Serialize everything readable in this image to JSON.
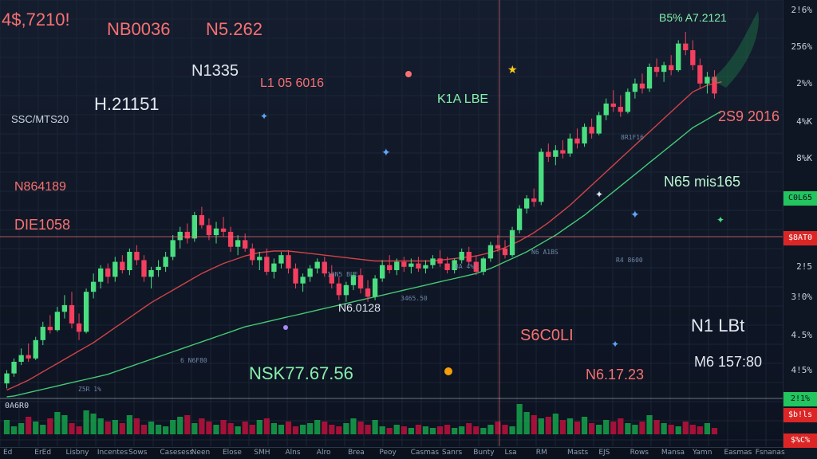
{
  "chart_data": {
    "type": "candlestick",
    "candles": [
      {
        "o": 18,
        "h": 34,
        "l": 12,
        "c": 30
      },
      {
        "o": 30,
        "h": 48,
        "l": 26,
        "c": 44
      },
      {
        "o": 44,
        "h": 60,
        "l": 40,
        "c": 52
      },
      {
        "o": 52,
        "h": 66,
        "l": 44,
        "c": 48
      },
      {
        "o": 48,
        "h": 74,
        "l": 46,
        "c": 70
      },
      {
        "o": 70,
        "h": 92,
        "l": 64,
        "c": 86
      },
      {
        "o": 86,
        "h": 100,
        "l": 78,
        "c": 82
      },
      {
        "o": 82,
        "h": 110,
        "l": 80,
        "c": 104
      },
      {
        "o": 104,
        "h": 124,
        "l": 96,
        "c": 112
      },
      {
        "o": 112,
        "h": 128,
        "l": 84,
        "c": 90
      },
      {
        "o": 90,
        "h": 102,
        "l": 70,
        "c": 80
      },
      {
        "o": 80,
        "h": 132,
        "l": 78,
        "c": 128
      },
      {
        "o": 128,
        "h": 150,
        "l": 120,
        "c": 140
      },
      {
        "o": 140,
        "h": 160,
        "l": 132,
        "c": 156
      },
      {
        "o": 156,
        "h": 162,
        "l": 138,
        "c": 146
      },
      {
        "o": 146,
        "h": 170,
        "l": 140,
        "c": 164
      },
      {
        "o": 164,
        "h": 172,
        "l": 150,
        "c": 154
      },
      {
        "o": 154,
        "h": 180,
        "l": 148,
        "c": 176
      },
      {
        "o": 176,
        "h": 184,
        "l": 160,
        "c": 166
      },
      {
        "o": 166,
        "h": 172,
        "l": 140,
        "c": 146
      },
      {
        "o": 146,
        "h": 158,
        "l": 132,
        "c": 154
      },
      {
        "o": 154,
        "h": 166,
        "l": 146,
        "c": 158
      },
      {
        "o": 158,
        "h": 176,
        "l": 152,
        "c": 170
      },
      {
        "o": 170,
        "h": 196,
        "l": 166,
        "c": 190
      },
      {
        "o": 190,
        "h": 206,
        "l": 180,
        "c": 200
      },
      {
        "o": 200,
        "h": 210,
        "l": 186,
        "c": 192
      },
      {
        "o": 192,
        "h": 224,
        "l": 188,
        "c": 220
      },
      {
        "o": 220,
        "h": 230,
        "l": 204,
        "c": 208
      },
      {
        "o": 208,
        "h": 216,
        "l": 190,
        "c": 196
      },
      {
        "o": 196,
        "h": 212,
        "l": 186,
        "c": 204
      },
      {
        "o": 204,
        "h": 218,
        "l": 194,
        "c": 200
      },
      {
        "o": 200,
        "h": 206,
        "l": 176,
        "c": 182
      },
      {
        "o": 182,
        "h": 196,
        "l": 172,
        "c": 190
      },
      {
        "o": 190,
        "h": 198,
        "l": 176,
        "c": 180
      },
      {
        "o": 180,
        "h": 186,
        "l": 160,
        "c": 166
      },
      {
        "o": 166,
        "h": 176,
        "l": 154,
        "c": 170
      },
      {
        "o": 170,
        "h": 180,
        "l": 148,
        "c": 152
      },
      {
        "o": 152,
        "h": 168,
        "l": 144,
        "c": 162
      },
      {
        "o": 162,
        "h": 176,
        "l": 156,
        "c": 172
      },
      {
        "o": 172,
        "h": 178,
        "l": 150,
        "c": 156
      },
      {
        "o": 156,
        "h": 162,
        "l": 132,
        "c": 138
      },
      {
        "o": 138,
        "h": 150,
        "l": 128,
        "c": 146
      },
      {
        "o": 146,
        "h": 160,
        "l": 140,
        "c": 156
      },
      {
        "o": 156,
        "h": 168,
        "l": 150,
        "c": 164
      },
      {
        "o": 164,
        "h": 170,
        "l": 146,
        "c": 150
      },
      {
        "o": 150,
        "h": 160,
        "l": 132,
        "c": 138
      },
      {
        "o": 138,
        "h": 146,
        "l": 118,
        "c": 124
      },
      {
        "o": 124,
        "h": 140,
        "l": 116,
        "c": 136
      },
      {
        "o": 136,
        "h": 152,
        "l": 130,
        "c": 148
      },
      {
        "o": 148,
        "h": 156,
        "l": 126,
        "c": 132
      },
      {
        "o": 132,
        "h": 142,
        "l": 116,
        "c": 122
      },
      {
        "o": 122,
        "h": 148,
        "l": 118,
        "c": 144
      },
      {
        "o": 144,
        "h": 166,
        "l": 140,
        "c": 160
      },
      {
        "o": 160,
        "h": 172,
        "l": 150,
        "c": 154
      },
      {
        "o": 154,
        "h": 168,
        "l": 148,
        "c": 164
      },
      {
        "o": 164,
        "h": 170,
        "l": 152,
        "c": 158
      },
      {
        "o": 158,
        "h": 168,
        "l": 150,
        "c": 162
      },
      {
        "o": 162,
        "h": 170,
        "l": 152,
        "c": 156
      },
      {
        "o": 156,
        "h": 166,
        "l": 150,
        "c": 160
      },
      {
        "o": 160,
        "h": 172,
        "l": 156,
        "c": 168
      },
      {
        "o": 168,
        "h": 178,
        "l": 158,
        "c": 162
      },
      {
        "o": 162,
        "h": 170,
        "l": 150,
        "c": 154
      },
      {
        "o": 154,
        "h": 168,
        "l": 150,
        "c": 166
      },
      {
        "o": 166,
        "h": 180,
        "l": 162,
        "c": 176
      },
      {
        "o": 176,
        "h": 182,
        "l": 160,
        "c": 164
      },
      {
        "o": 164,
        "h": 172,
        "l": 148,
        "c": 152
      },
      {
        "o": 152,
        "h": 170,
        "l": 148,
        "c": 168
      },
      {
        "o": 168,
        "h": 188,
        "l": 164,
        "c": 184
      },
      {
        "o": 184,
        "h": 196,
        "l": 176,
        "c": 180
      },
      {
        "o": 180,
        "h": 190,
        "l": 168,
        "c": 172
      },
      {
        "o": 172,
        "h": 206,
        "l": 170,
        "c": 202
      },
      {
        "o": 202,
        "h": 232,
        "l": 198,
        "c": 228
      },
      {
        "o": 228,
        "h": 244,
        "l": 222,
        "c": 240
      },
      {
        "o": 240,
        "h": 252,
        "l": 230,
        "c": 236
      },
      {
        "o": 236,
        "h": 300,
        "l": 232,
        "c": 296
      },
      {
        "o": 296,
        "h": 306,
        "l": 284,
        "c": 290
      },
      {
        "o": 290,
        "h": 304,
        "l": 280,
        "c": 298
      },
      {
        "o": 298,
        "h": 310,
        "l": 288,
        "c": 294
      },
      {
        "o": 294,
        "h": 318,
        "l": 290,
        "c": 312
      },
      {
        "o": 312,
        "h": 324,
        "l": 300,
        "c": 306
      },
      {
        "o": 306,
        "h": 330,
        "l": 302,
        "c": 326
      },
      {
        "o": 326,
        "h": 336,
        "l": 312,
        "c": 318
      },
      {
        "o": 318,
        "h": 344,
        "l": 316,
        "c": 340
      },
      {
        "o": 340,
        "h": 360,
        "l": 334,
        "c": 354
      },
      {
        "o": 354,
        "h": 370,
        "l": 344,
        "c": 350
      },
      {
        "o": 350,
        "h": 364,
        "l": 338,
        "c": 344
      },
      {
        "o": 344,
        "h": 372,
        "l": 342,
        "c": 368
      },
      {
        "o": 368,
        "h": 384,
        "l": 360,
        "c": 378
      },
      {
        "o": 378,
        "h": 390,
        "l": 366,
        "c": 372
      },
      {
        "o": 372,
        "h": 402,
        "l": 368,
        "c": 398
      },
      {
        "o": 398,
        "h": 408,
        "l": 386,
        "c": 392
      },
      {
        "o": 392,
        "h": 404,
        "l": 380,
        "c": 400
      },
      {
        "o": 400,
        "h": 412,
        "l": 388,
        "c": 394
      },
      {
        "o": 394,
        "h": 430,
        "l": 392,
        "c": 426
      },
      {
        "o": 426,
        "h": 440,
        "l": 412,
        "c": 418
      },
      {
        "o": 418,
        "h": 430,
        "l": 394,
        "c": 400
      },
      {
        "o": 400,
        "h": 408,
        "l": 372,
        "c": 378
      },
      {
        "o": 378,
        "h": 392,
        "l": 366,
        "c": 386
      },
      {
        "o": 386,
        "h": 394,
        "l": 360,
        "c": 366
      }
    ],
    "moving_averages": [
      {
        "name": "",
        "color": "#e5484d",
        "values": [
          10,
          14,
          18,
          22,
          27,
          32,
          37,
          42,
          47,
          52,
          57,
          62,
          67,
          73,
          79,
          85,
          91,
          97,
          103,
          109,
          115,
          120,
          125,
          130,
          135,
          140,
          145,
          150,
          154,
          158,
          162,
          165,
          168,
          171,
          173,
          175,
          176,
          177,
          177,
          177,
          176,
          175,
          174,
          173,
          172,
          171,
          170,
          169,
          168,
          167,
          166,
          165,
          165,
          165,
          165,
          165,
          165,
          165,
          165,
          165,
          166,
          167,
          168,
          169,
          170,
          171,
          173,
          175,
          178,
          181,
          185,
          189,
          194,
          199,
          205,
          211,
          218,
          225,
          232,
          240,
          248,
          256,
          264,
          272,
          280,
          288,
          296,
          304,
          312,
          320,
          328,
          336,
          344,
          352,
          360,
          368,
          372,
          376,
          378,
          380
        ]
      },
      {
        "name": "",
        "color": "#4ade80",
        "values": [
          2,
          3,
          5,
          7,
          9,
          11,
          13,
          15,
          17,
          19,
          21,
          23,
          25,
          27,
          29,
          32,
          35,
          38,
          41,
          44,
          47,
          50,
          53,
          56,
          59,
          62,
          65,
          68,
          71,
          74,
          77,
          80,
          83,
          86,
          88,
          90,
          92,
          94,
          96,
          98,
          100,
          102,
          104,
          106,
          108,
          110,
          112,
          114,
          116,
          118,
          120,
          122,
          124,
          126,
          128,
          130,
          132,
          134,
          136,
          138,
          140,
          142,
          144,
          146,
          148,
          150,
          153,
          156,
          160,
          164,
          168,
          172,
          176,
          181,
          186,
          191,
          196,
          202,
          208,
          214,
          220,
          227,
          234,
          241,
          248,
          255,
          262,
          269,
          276,
          283,
          290,
          297,
          304,
          311,
          318,
          325,
          330,
          335,
          340,
          345
        ]
      }
    ],
    "volume": [
      18,
      10,
      14,
      22,
      16,
      12,
      20,
      28,
      24,
      14,
      10,
      30,
      26,
      20,
      16,
      18,
      14,
      24,
      20,
      12,
      16,
      12,
      10,
      18,
      22,
      24,
      14,
      20,
      16,
      12,
      18,
      14,
      10,
      16,
      12,
      18,
      20,
      14,
      12,
      16,
      10,
      12,
      14,
      18,
      16,
      12,
      10,
      14,
      20,
      16,
      12,
      18,
      10,
      8,
      12,
      10,
      8,
      12,
      10,
      8,
      10,
      12,
      8,
      10,
      14,
      10,
      8,
      12,
      16,
      12,
      10,
      38,
      28,
      24,
      20,
      22,
      26,
      18,
      20,
      16,
      22,
      14,
      12,
      18,
      16,
      20,
      14,
      12,
      16,
      24,
      18,
      14,
      12,
      10,
      16,
      12,
      10,
      14,
      8
    ],
    "ylim": [
      0,
      440
    ]
  },
  "price_scale": {
    "ticks": [
      "2!6%",
      "256%",
      "2%%",
      "4%K",
      "8%K",
      "",
      "",
      "2!5",
      "3!0%",
      "4.5%",
      "4!5%"
    ],
    "badges": [
      {
        "text": "C0L65",
        "bg": "#22c55e",
        "fg": "#0b111c"
      },
      {
        "text": "$8AT0",
        "bg": "#dc2626",
        "fg": "#ffffff"
      },
      {
        "text": "$b!ls",
        "bg": "#dc2626",
        "fg": "#ffffff"
      },
      {
        "text": "$%C%",
        "bg": "#dc2626",
        "fg": "#ffffff"
      },
      {
        "text": "2!1%",
        "bg": "#22c55e",
        "fg": "#0b111c"
      }
    ]
  },
  "overlays": [
    {
      "text": "4$,7210!",
      "color": "#f87171"
    },
    {
      "text": "NB0036",
      "color": "#f87171"
    },
    {
      "text": "N5.262",
      "color": "#f87171"
    },
    {
      "text": "N1335",
      "color": "#e2e8f0"
    },
    {
      "text": "H.21151",
      "color": "#e2e8f0"
    },
    {
      "text": "L1 05 6016",
      "color": "#f87171"
    },
    {
      "text": "K1A LBE",
      "color": "#86efac"
    },
    {
      "text": "N864189",
      "color": "#f87171"
    },
    {
      "text": "DIE1058",
      "color": "#f87171"
    },
    {
      "text": "N65 mis165",
      "color": "#bbf7d0"
    },
    {
      "text": "2S9 2016",
      "color": "#f87171"
    },
    {
      "text": "N6.0128",
      "color": "#e2e8f0"
    },
    {
      "text": "S6C0LI",
      "color": "#f87171"
    },
    {
      "text": "N1 LBt",
      "color": "#e2e8f0"
    },
    {
      "text": "NSK77.67.56",
      "color": "#86efac"
    },
    {
      "text": "N6.17.23",
      "color": "#f87171"
    },
    {
      "text": "M6 157:80",
      "color": "#e2e8f0"
    },
    {
      "text": "SSC/MTS20",
      "color": "#cbd5e1"
    },
    {
      "text": "B5% A7.2121",
      "color": "#86efac"
    },
    {
      "text": "0A6R0",
      "color": "#e2e8f0"
    }
  ],
  "notes": [
    "8R1F16",
    "N6 A1BS",
    "R4 8600",
    "3465.50",
    "6 N6F80",
    "Z5R 1%",
    "8A 4%L",
    "10N5 BLE"
  ],
  "time_axis": [
    "Ed",
    "ErEd",
    "Lisbny",
    "Incentes",
    "Sows",
    "Casesess",
    "Neen",
    "Elose",
    "SMH",
    "Alns",
    "Alro",
    "Brea",
    "Peoy",
    "Casmas",
    "Sanrs",
    "Bunty",
    "Lsa",
    "RM",
    "Masts",
    "EJS",
    "Rows",
    "Mansa",
    "Yamn",
    "Easmas",
    "Fsnanas"
  ]
}
